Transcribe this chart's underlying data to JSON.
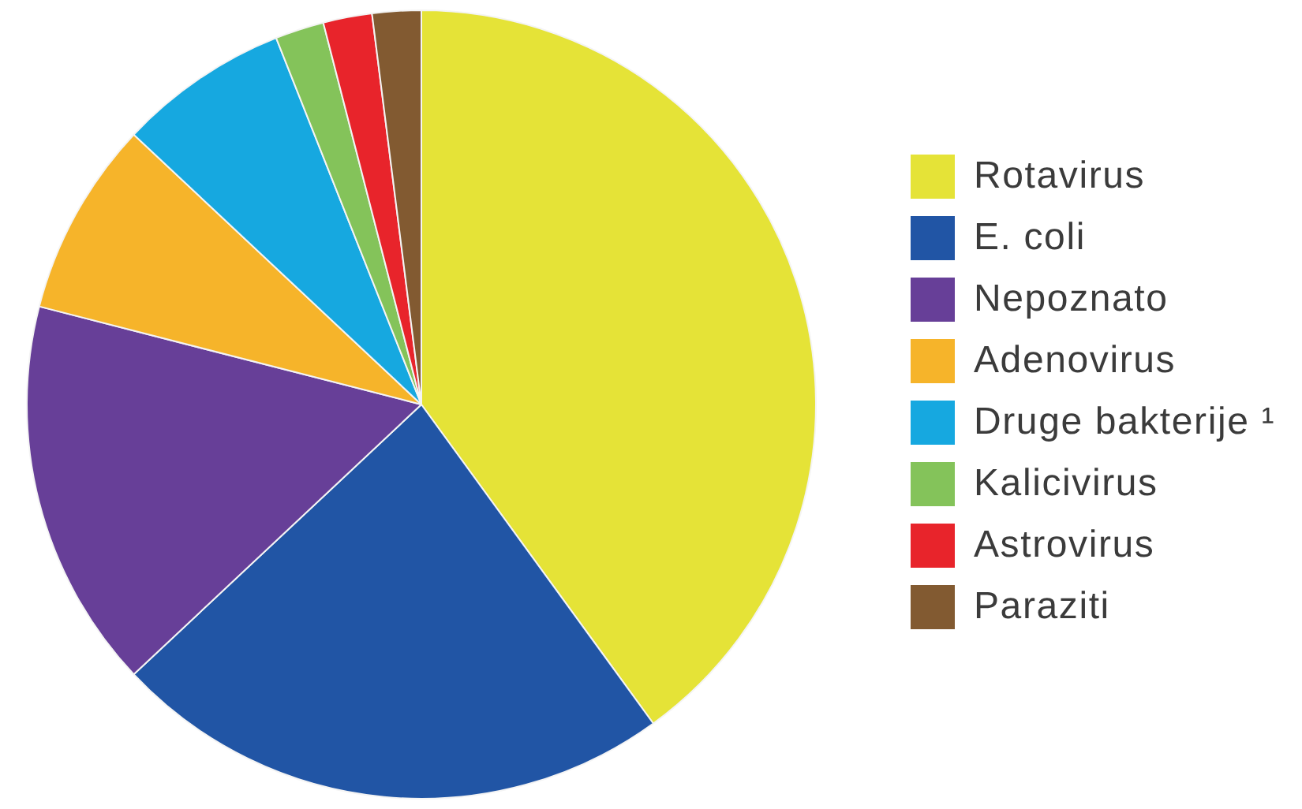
{
  "chart_data": {
    "type": "pie",
    "categories": [
      "Rotavirus",
      "E. coli",
      "Nepoznato",
      "Adenovirus",
      "Druge bakterije ¹",
      "Kalicivirus",
      "Astrovirus",
      "Paraziti"
    ],
    "values": [
      40,
      23,
      16,
      8,
      7,
      2,
      2,
      2
    ],
    "colors": [
      "#e5e337",
      "#2155a5",
      "#673f98",
      "#f6b42a",
      "#16a8e0",
      "#84c35a",
      "#e8242b",
      "#825a31"
    ],
    "legend": "right"
  }
}
